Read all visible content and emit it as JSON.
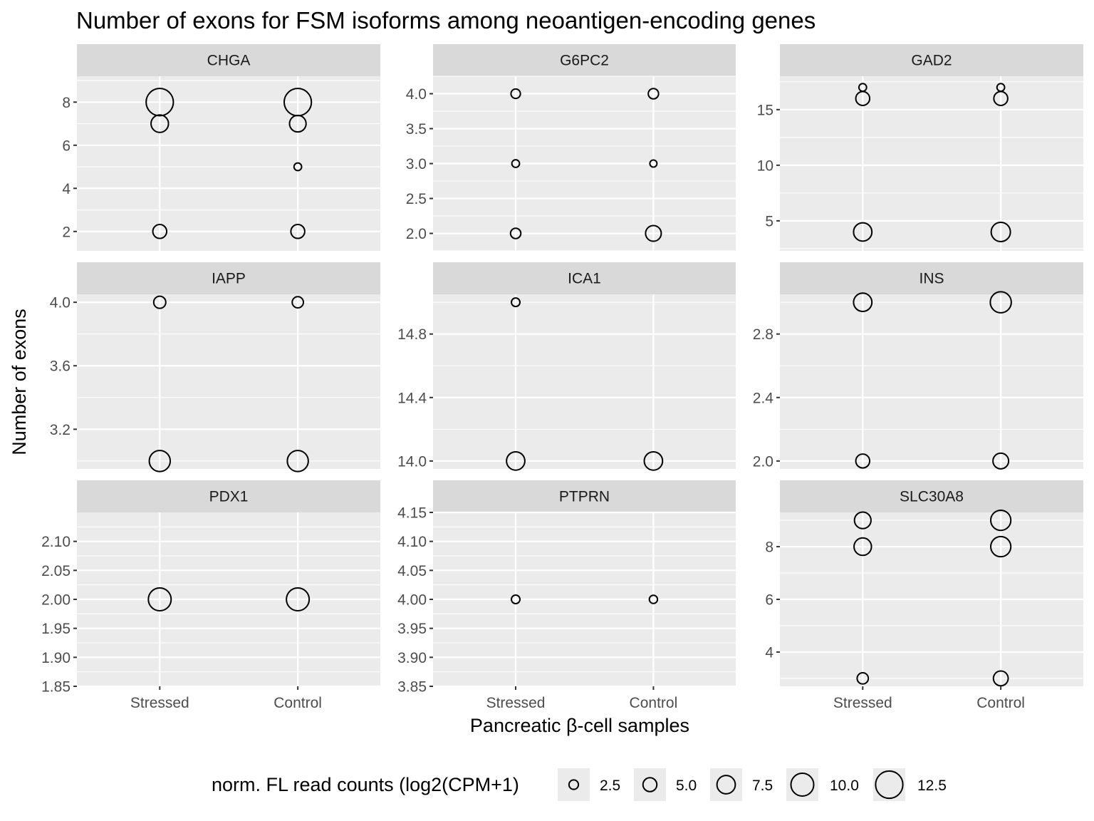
{
  "chart_data": {
    "type": "scatter",
    "title": "Number of exons for FSM isoforms among neoantigen-encoding genes",
    "xlabel": "Pancreatic β-cell samples",
    "ylabel": "Number of exons",
    "categories": [
      "Stressed",
      "Control"
    ],
    "size_legend": {
      "title": "norm. FL read counts (log2(CPM+1)",
      "breaks": [
        2.5,
        5.0,
        7.5,
        10.0,
        12.5
      ],
      "labels": [
        "2.5",
        "5.0",
        "7.5",
        "10.0",
        "12.5"
      ]
    },
    "panels": [
      {
        "name": "CHGA",
        "ylim": [
          1.1,
          9.2
        ],
        "yticks": [
          2,
          4,
          6,
          8
        ],
        "ytick_labels": [
          "2",
          "4",
          "6",
          "8"
        ],
        "points": [
          {
            "x": "Stressed",
            "y": 8,
            "size": 12.5
          },
          {
            "x": "Stressed",
            "y": 7,
            "size": 7.0
          },
          {
            "x": "Stressed",
            "y": 2,
            "size": 5.0
          },
          {
            "x": "Control",
            "y": 8,
            "size": 12.5
          },
          {
            "x": "Control",
            "y": 7,
            "size": 6.5
          },
          {
            "x": "Control",
            "y": 5,
            "size": 1.5
          },
          {
            "x": "Control",
            "y": 2,
            "size": 5.0
          }
        ]
      },
      {
        "name": "G6PC2",
        "ylim": [
          1.75,
          4.25
        ],
        "yticks": [
          2.0,
          2.5,
          3.0,
          3.5,
          4.0
        ],
        "ytick_labels": [
          "2.0",
          "2.5",
          "3.0",
          "3.5",
          "4.0"
        ],
        "points": [
          {
            "x": "Stressed",
            "y": 4,
            "size": 2.5
          },
          {
            "x": "Stressed",
            "y": 3,
            "size": 1.5
          },
          {
            "x": "Stressed",
            "y": 2,
            "size": 3.0
          },
          {
            "x": "Control",
            "y": 4,
            "size": 3.0
          },
          {
            "x": "Control",
            "y": 3,
            "size": 1.2
          },
          {
            "x": "Control",
            "y": 2,
            "size": 6.0
          }
        ]
      },
      {
        "name": "GAD2",
        "ylim": [
          2.3,
          18.0
        ],
        "yticks": [
          5,
          10,
          15
        ],
        "ytick_labels": [
          "5",
          "10",
          "15"
        ],
        "points": [
          {
            "x": "Stressed",
            "y": 17,
            "size": 1.5
          },
          {
            "x": "Stressed",
            "y": 16,
            "size": 5.0
          },
          {
            "x": "Stressed",
            "y": 4,
            "size": 7.5
          },
          {
            "x": "Control",
            "y": 17,
            "size": 1.5
          },
          {
            "x": "Control",
            "y": 16,
            "size": 5.0
          },
          {
            "x": "Control",
            "y": 4,
            "size": 8.0
          }
        ]
      },
      {
        "name": "IAPP",
        "ylim": [
          2.95,
          4.05
        ],
        "yticks": [
          3.2,
          3.6,
          4.0
        ],
        "ytick_labels": [
          "3.2",
          "3.6",
          "4.0"
        ],
        "points": [
          {
            "x": "Stressed",
            "y": 4,
            "size": 4.0
          },
          {
            "x": "Stressed",
            "y": 3,
            "size": 9.0
          },
          {
            "x": "Control",
            "y": 4,
            "size": 3.5
          },
          {
            "x": "Control",
            "y": 3,
            "size": 9.0
          }
        ]
      },
      {
        "name": "ICA1",
        "ylim": [
          13.95,
          15.05
        ],
        "yticks": [
          14.0,
          14.4,
          14.8
        ],
        "ytick_labels": [
          "14.0",
          "14.4",
          "14.8"
        ],
        "points": [
          {
            "x": "Stressed",
            "y": 15,
            "size": 2.0
          },
          {
            "x": "Stressed",
            "y": 14,
            "size": 7.5
          },
          {
            "x": "Control",
            "y": 14,
            "size": 7.5
          }
        ]
      },
      {
        "name": "INS",
        "ylim": [
          1.95,
          3.05
        ],
        "yticks": [
          2.0,
          2.4,
          2.8
        ],
        "ytick_labels": [
          "2.0",
          "2.4",
          "2.8"
        ],
        "points": [
          {
            "x": "Stressed",
            "y": 3,
            "size": 7.5
          },
          {
            "x": "Stressed",
            "y": 2,
            "size": 5.0
          },
          {
            "x": "Control",
            "y": 3,
            "size": 9.0
          },
          {
            "x": "Control",
            "y": 2,
            "size": 6.0
          }
        ]
      },
      {
        "name": "PDX1",
        "ylim": [
          1.85,
          2.15
        ],
        "yticks": [
          1.85,
          1.9,
          1.95,
          2.0,
          2.05,
          2.1
        ],
        "ytick_labels": [
          "1.85",
          "1.90",
          "1.95",
          "2.00",
          "2.05",
          "2.10"
        ],
        "points": [
          {
            "x": "Stressed",
            "y": 2,
            "size": 10.0
          },
          {
            "x": "Control",
            "y": 2,
            "size": 10.0
          }
        ]
      },
      {
        "name": "PTPRN",
        "ylim": [
          3.85,
          4.15
        ],
        "yticks": [
          3.85,
          3.9,
          3.95,
          4.0,
          4.05,
          4.1,
          4.15
        ],
        "ytick_labels": [
          "3.85",
          "3.90",
          "3.95",
          "4.00",
          "4.05",
          "4.10",
          "4.15"
        ],
        "points": [
          {
            "x": "Stressed",
            "y": 4,
            "size": 2.0
          },
          {
            "x": "Control",
            "y": 4,
            "size": 1.8
          }
        ]
      },
      {
        "name": "SLC30A8",
        "ylim": [
          2.7,
          9.3
        ],
        "yticks": [
          4,
          6,
          8
        ],
        "ytick_labels": [
          "4",
          "6",
          "8"
        ],
        "points": [
          {
            "x": "Stressed",
            "y": 9,
            "size": 6.5
          },
          {
            "x": "Stressed",
            "y": 8,
            "size": 7.0
          },
          {
            "x": "Stressed",
            "y": 3,
            "size": 3.5
          },
          {
            "x": "Control",
            "y": 9,
            "size": 8.5
          },
          {
            "x": "Control",
            "y": 8,
            "size": 8.5
          },
          {
            "x": "Control",
            "y": 3,
            "size": 5.5
          }
        ]
      }
    ],
    "colors": {
      "panel_background": "#ebebeb",
      "grid": "#ffffff",
      "strip_background": "#d9d9d9",
      "point_stroke": "#000000",
      "point_fill": "#ffffff"
    }
  }
}
